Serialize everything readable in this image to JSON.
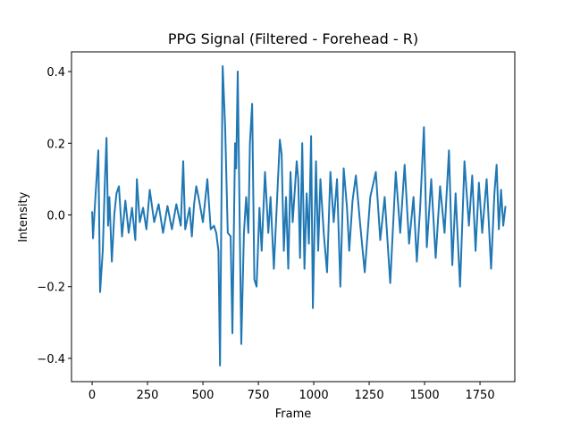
{
  "chart_data": {
    "type": "line",
    "title": "PPG Signal (Filtered - Forehead - R)",
    "x_label": "Frame",
    "y_label": "Intensity",
    "color": "#1f77b4",
    "x": [
      0,
      4,
      15,
      28,
      36,
      48,
      58,
      65,
      72,
      78,
      89,
      100,
      110,
      121,
      135,
      150,
      165,
      180,
      195,
      202,
      215,
      230,
      245,
      260,
      280,
      300,
      320,
      340,
      360,
      380,
      400,
      411,
      420,
      440,
      450,
      460,
      470,
      480,
      500,
      520,
      535,
      550,
      560,
      570,
      577,
      589,
      600,
      612,
      625,
      633,
      645,
      650,
      657,
      673,
      685,
      695,
      705,
      712,
      722,
      732,
      742,
      755,
      765,
      780,
      795,
      805,
      820,
      835,
      847,
      855,
      865,
      875,
      885,
      895,
      905,
      923,
      930,
      938,
      948,
      958,
      968,
      978,
      988,
      996,
      1010,
      1020,
      1030,
      1045,
      1060,
      1075,
      1090,
      1105,
      1120,
      1135,
      1150,
      1160,
      1175,
      1190,
      1210,
      1230,
      1255,
      1280,
      1300,
      1320,
      1345,
      1370,
      1390,
      1410,
      1430,
      1450,
      1465,
      1480,
      1497,
      1510,
      1530,
      1550,
      1570,
      1590,
      1610,
      1625,
      1640,
      1660,
      1680,
      1700,
      1715,
      1730,
      1745,
      1760,
      1780,
      1800,
      1815,
      1825,
      1835,
      1845,
      1855,
      1865
    ],
    "values": [
      0.01,
      -0.065,
      0.05,
      0.18,
      -0.215,
      -0.1,
      0.1,
      0.215,
      -0.03,
      0.05,
      -0.13,
      0.0,
      0.06,
      0.08,
      -0.06,
      0.04,
      -0.05,
      0.02,
      -0.07,
      0.1,
      -0.02,
      0.02,
      -0.04,
      0.07,
      -0.02,
      0.03,
      -0.05,
      0.025,
      -0.04,
      0.03,
      -0.03,
      0.15,
      -0.04,
      0.02,
      -0.06,
      0.03,
      0.08,
      0.05,
      -0.02,
      0.1,
      -0.04,
      -0.03,
      -0.05,
      -0.1,
      -0.42,
      0.415,
      0.25,
      -0.05,
      -0.06,
      -0.33,
      0.2,
      0.13,
      0.4,
      -0.36,
      -0.05,
      0.05,
      -0.05,
      0.2,
      0.31,
      -0.18,
      -0.2,
      0.02,
      -0.1,
      0.12,
      -0.05,
      0.05,
      -0.15,
      0.05,
      0.21,
      0.17,
      -0.1,
      0.05,
      -0.15,
      0.12,
      -0.02,
      0.15,
      0.1,
      -0.12,
      0.2,
      -0.15,
      0.06,
      -0.08,
      0.22,
      -0.26,
      0.15,
      -0.1,
      0.1,
      -0.05,
      -0.16,
      0.12,
      -0.02,
      0.1,
      -0.2,
      0.13,
      0.02,
      -0.1,
      0.04,
      0.11,
      -0.03,
      -0.16,
      0.05,
      0.12,
      -0.07,
      0.05,
      -0.19,
      0.12,
      -0.05,
      0.14,
      -0.08,
      0.05,
      -0.13,
      0.02,
      0.245,
      -0.09,
      0.1,
      -0.12,
      0.08,
      -0.05,
      0.18,
      -0.14,
      0.06,
      -0.2,
      0.15,
      -0.03,
      0.11,
      -0.1,
      0.09,
      -0.05,
      0.1,
      -0.15,
      0.06,
      0.14,
      -0.04,
      0.07,
      -0.03,
      0.025
    ],
    "xlim": [
      -93,
      1907
    ],
    "ylim": [
      -0.465,
      0.455
    ],
    "xticks": [
      0,
      250,
      500,
      750,
      1000,
      1250,
      1500,
      1750
    ],
    "yticks": [
      {
        "value": -0.4,
        "label": "−0.4"
      },
      {
        "value": -0.2,
        "label": "−0.2"
      },
      {
        "value": 0,
        "label": "0.0"
      },
      0.2,
      0.4
    ]
  }
}
